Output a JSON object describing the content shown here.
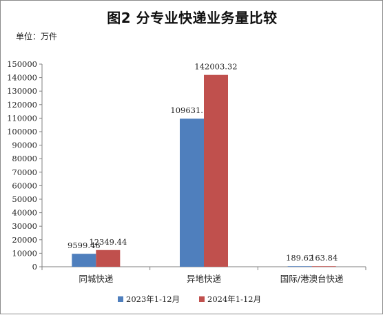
{
  "chart_data": {
    "type": "bar",
    "title": "图2 分专业快递业务量比较",
    "unit_label": "单位：万件",
    "categories": [
      "同城快递",
      "异地快递",
      "国际/港澳台快递"
    ],
    "series": [
      {
        "name": "2023年1-12月",
        "color": "#4f7fbd",
        "values": [
          9599.46,
          109631.19,
          189.62
        ],
        "labels": [
          "9599.46",
          "109631.19",
          "189.62"
        ]
      },
      {
        "name": "2024年1-12月",
        "color": "#c0504d",
        "values": [
          12349.44,
          142003.32,
          163.84
        ],
        "labels": [
          "12349.44",
          "142003.32",
          "163.84"
        ]
      }
    ],
    "ylim": [
      0,
      150000
    ],
    "yticks": [
      0,
      10000,
      20000,
      30000,
      40000,
      50000,
      60000,
      70000,
      80000,
      90000,
      100000,
      110000,
      120000,
      130000,
      140000,
      150000
    ],
    "grid": false,
    "legend_position": "bottom"
  }
}
